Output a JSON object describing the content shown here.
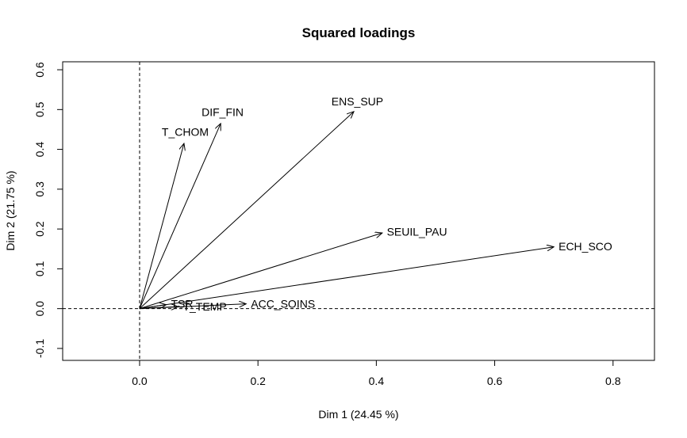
{
  "chart_data": {
    "type": "scatter",
    "title": "Squared loadings",
    "xlabel": "Dim 1 (24.45 %)",
    "ylabel": "Dim 2 (21.75 %)",
    "xlim": [
      -0.13,
      0.87
    ],
    "ylim": [
      -0.13,
      0.62
    ],
    "x_ticks": [
      0.0,
      0.2,
      0.4,
      0.6,
      0.8
    ],
    "y_ticks": [
      -0.1,
      0.0,
      0.1,
      0.2,
      0.3,
      0.4,
      0.5,
      0.6
    ],
    "x_tick_labels": [
      "0.0",
      "0.2",
      "0.4",
      "0.6",
      "0.8"
    ],
    "y_tick_labels": [
      "-0.1",
      "0.0",
      "0.1",
      "0.2",
      "0.3",
      "0.4",
      "0.5",
      "0.6"
    ],
    "grid": false,
    "reference_lines": {
      "x": 0,
      "y": 0,
      "style": "dashed"
    },
    "style": {
      "color": "#000000"
    },
    "vectors": [
      {
        "label": "T_CHOM",
        "x": 0.075,
        "y": 0.415
      },
      {
        "label": "DIF_FIN",
        "x": 0.137,
        "y": 0.465
      },
      {
        "label": "ENS_SUP",
        "x": 0.362,
        "y": 0.495
      },
      {
        "label": "SEUIL_PAU",
        "x": 0.41,
        "y": 0.19
      },
      {
        "label": "ECH_SCO",
        "x": 0.7,
        "y": 0.155
      },
      {
        "label": "TSR",
        "x": 0.045,
        "y": 0.01
      },
      {
        "label": "T_TEMP",
        "x": 0.065,
        "y": 0.005
      },
      {
        "label": "ACC_SOINS",
        "x": 0.18,
        "y": 0.012
      }
    ]
  }
}
